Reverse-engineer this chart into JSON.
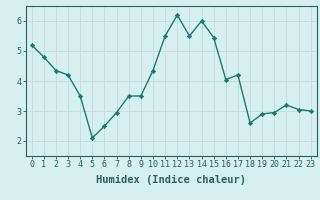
{
  "x": [
    0,
    1,
    2,
    3,
    4,
    5,
    6,
    7,
    8,
    9,
    10,
    11,
    12,
    13,
    14,
    15,
    16,
    17,
    18,
    19,
    20,
    21,
    22,
    23
  ],
  "y": [
    5.2,
    4.8,
    4.35,
    4.2,
    3.5,
    2.1,
    2.5,
    2.95,
    3.5,
    3.5,
    4.35,
    5.5,
    6.2,
    5.5,
    6.0,
    5.45,
    4.05,
    4.2,
    2.6,
    2.9,
    2.95,
    3.2,
    3.05,
    3.0
  ],
  "xlabel": "Humidex (Indice chaleur)",
  "ylim": [
    1.5,
    6.5
  ],
  "xlim": [
    -0.5,
    23.5
  ],
  "yticks": [
    2,
    3,
    4,
    5,
    6
  ],
  "xticks": [
    0,
    1,
    2,
    3,
    4,
    5,
    6,
    7,
    8,
    9,
    10,
    11,
    12,
    13,
    14,
    15,
    16,
    17,
    18,
    19,
    20,
    21,
    22,
    23
  ],
  "line_color": "#1a7a6e",
  "marker": "D",
  "marker_size": 2.2,
  "bg_color": "#d6f0f0",
  "grid_color": "#c8dede",
  "axis_color": "#2a6060",
  "xlabel_fontsize": 7.5,
  "tick_fontsize": 6.0,
  "linewidth": 1.0
}
